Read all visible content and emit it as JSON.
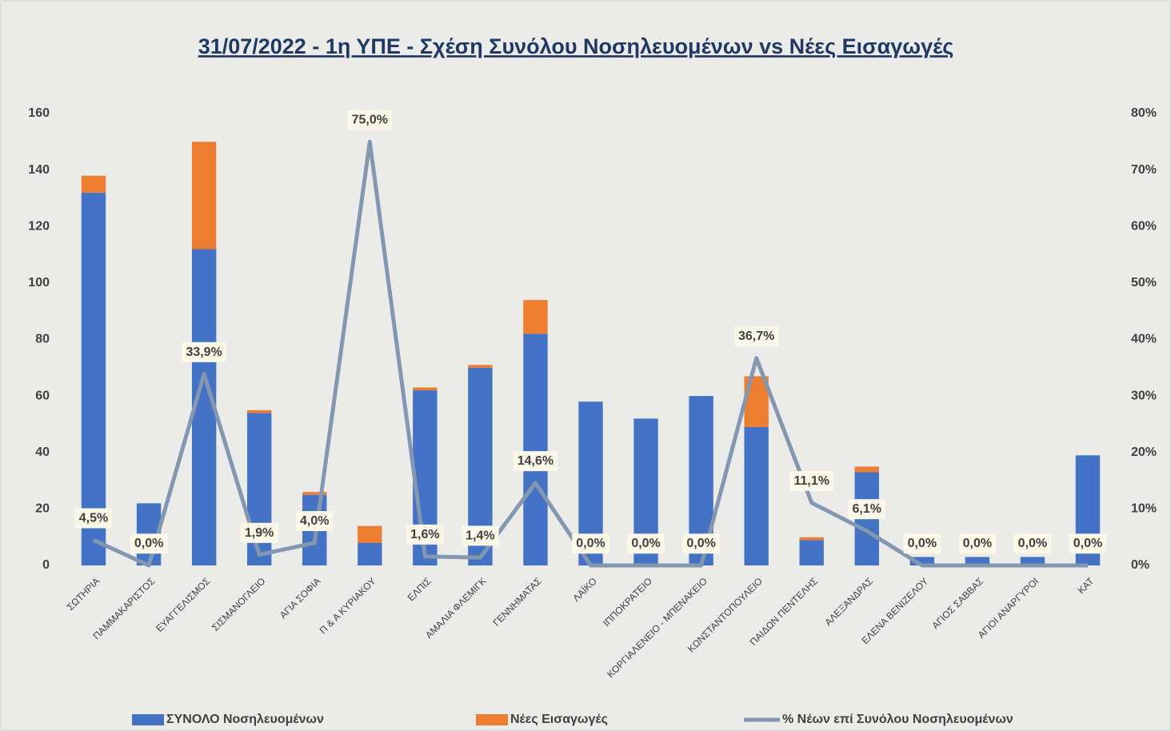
{
  "chart_data": {
    "type": "bar",
    "stacked": true,
    "title": "31/07/2022 - 1η ΥΠΕ - Σχέση Συνόλου Νοσηλευομένων vs Νέες Εισαγωγές",
    "categories": [
      "ΣΩΤΗΡΙΑ",
      "ΠΑΜΜΑΚΑΡΙΣΤΟΣ",
      "ΕΥΑΓΓΕΛΙΣΜΟΣ",
      "ΣΙΣΜΑΝΟΓΛΕΙΟ",
      "ΑΓΙΑ ΣΟΦΙΑ",
      "Π & Α ΚΥΡΙΑΚΟΥ",
      "ΕΛΠΙΣ",
      "ΑΜΑΛΙΑ ΦΛΕΜΙΓΚ",
      "ΓΕΝΝΗΜΑΤΑΣ",
      "ΛΑΪΚΟ",
      "ΙΠΠΟΚΡΑΤΕΙΟ",
      "ΚΟΡΓΙΑΛΕΝΕΙΟ - ΜΠΕΝΑΚΕΙΟ",
      "ΚΩΝΣΤΑΝΤΟΠΟΥΛΕΙΟ",
      "ΠΑΙΔΩΝ ΠΕΝΤΕΛΗΣ",
      "ΑΛΕΞΑΝΔΡΑΣ",
      "ΕΛΕΝΑ ΒΕΝΙΖΕΛΟΥ",
      "ΑΓΙΟΣ ΣΑΒΒΑΣ",
      "ΑΓΙΟΙ ΑΝΑΡΓΥΡΟΙ",
      "ΚΑΤ"
    ],
    "series": [
      {
        "name": "ΣΥΝΟΛΟ Νοσηλευομένων",
        "color": "#4472c4",
        "values": [
          132,
          22,
          112,
          54,
          25,
          8,
          62,
          70,
          82,
          58,
          52,
          60,
          49,
          9,
          33,
          3,
          3,
          3,
          39
        ]
      },
      {
        "name": "Νέες Εισαγωγές",
        "color": "#ed7d31",
        "values": [
          6,
          0,
          38,
          1,
          1,
          6,
          1,
          1,
          12,
          0,
          0,
          0,
          18,
          1,
          2,
          0,
          0,
          0,
          0
        ]
      },
      {
        "name": "% Νέων επί Συνόλου Νοσηλευομένων",
        "color": "#8497b0",
        "type": "line",
        "axis": "y2",
        "values": [
          4.5,
          0,
          33.9,
          1.9,
          4.0,
          75.0,
          1.6,
          1.4,
          14.6,
          0,
          0,
          0,
          36.7,
          11.1,
          6.1,
          0,
          0,
          0,
          0
        ],
        "value_labels": [
          "4,5%",
          "0,0%",
          "33,9%",
          "1,9%",
          "4,0%",
          "75,0%",
          "1,6%",
          "1,4%",
          "14,6%",
          "0,0%",
          "0,0%",
          "0,0%",
          "36,7%",
          "11,1%",
          "6,1%",
          "0,0%",
          "0,0%",
          "0,0%",
          "0,0%"
        ]
      }
    ],
    "ylim": [
      0,
      160
    ],
    "yticks": [
      0,
      20,
      40,
      60,
      80,
      100,
      120,
      140,
      160
    ],
    "y2lim": [
      0,
      80
    ],
    "y2ticks": [
      {
        "value": 0,
        "label": "0%"
      },
      {
        "value": 10,
        "label": "10%"
      },
      {
        "value": 20,
        "label": "20%"
      },
      {
        "value": 30,
        "label": "30%"
      },
      {
        "value": 40,
        "label": "40%"
      },
      {
        "value": 50,
        "label": "50%"
      },
      {
        "value": 60,
        "label": "60%"
      },
      {
        "value": 70,
        "label": "70%"
      },
      {
        "value": 80,
        "label": "80%"
      }
    ],
    "grid": false,
    "legend": "bottom"
  }
}
